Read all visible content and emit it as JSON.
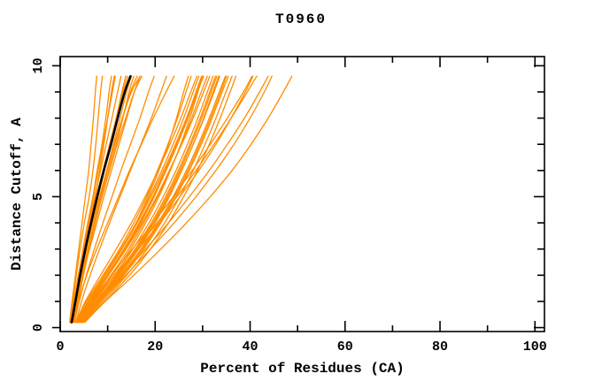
{
  "chart_data": {
    "type": "line",
    "title": "T0960",
    "xlabel": "Percent of Residues (CA)",
    "ylabel": "Distance Cutoff, A",
    "xlim": [
      0,
      102
    ],
    "ylim": [
      -0.15,
      10.35
    ],
    "grid": false,
    "legend": "none",
    "background_color": "#ffffff",
    "axis_color": "#000000",
    "x_ticks": {
      "major": [
        0,
        20,
        40,
        60,
        80,
        100
      ],
      "minor": [
        10,
        30,
        50,
        70,
        90
      ],
      "major_labels": [
        "0",
        "20",
        "40",
        "60",
        "80",
        "100"
      ]
    },
    "y_ticks": {
      "major": [
        0,
        5,
        10
      ],
      "minor": [
        1,
        2,
        3,
        4,
        6,
        7,
        8,
        9
      ],
      "major_labels": [
        "0",
        "5",
        "10"
      ]
    },
    "cutoffs": [
      0.2,
      1,
      2,
      3,
      4,
      5,
      6,
      7,
      8,
      9,
      9.6
    ],
    "reference": {
      "name": "reference-model-curve",
      "color": "#000000",
      "line_width": 2.6,
      "x": [
        2.4,
        3.2,
        4.2,
        5.3,
        6.5,
        7.8,
        9.2,
        10.7,
        12.1,
        13.6,
        14.8
      ]
    },
    "predictions": {
      "name": "prediction-model-curves",
      "color": "#FF8C00",
      "line_width": 1.3,
      "curves": [
        [
          2.1,
          2.7,
          3.4,
          4.2,
          5.1,
          6.1,
          6.9,
          7.5,
          8.0,
          8.5,
          8.9
        ],
        [
          2.5,
          3.0,
          3.9,
          4.8,
          5.8,
          6.9,
          7.8,
          8.8,
          9.6,
          10.3,
          10.8
        ],
        [
          2.8,
          3.5,
          4.4,
          5.5,
          6.8,
          8.0,
          9.3,
          10.6,
          11.8,
          13.0,
          13.8
        ],
        [
          3.0,
          3.8,
          4.9,
          6.1,
          7.4,
          8.8,
          10.3,
          11.8,
          13.2,
          14.5,
          15.5
        ],
        [
          2.4,
          3.2,
          4.2,
          5.3,
          6.4,
          7.4,
          8.3,
          9.2,
          10.0,
          10.8,
          11.4
        ],
        [
          2.6,
          3.4,
          4.5,
          5.8,
          7.2,
          8.6,
          10.0,
          11.5,
          13.1,
          14.8,
          16.2
        ],
        [
          2.3,
          3.0,
          4.0,
          5.0,
          6.0,
          7.0,
          8.0,
          9.0,
          10.0,
          11.0,
          11.6
        ],
        [
          2.9,
          3.7,
          4.7,
          5.9,
          7.2,
          8.5,
          9.8,
          11.2,
          12.6,
          14.0,
          15.0
        ],
        [
          2.5,
          3.3,
          4.3,
          5.5,
          6.9,
          8.3,
          9.8,
          11.4,
          13.1,
          15.0,
          16.8
        ],
        [
          2.2,
          2.9,
          3.8,
          4.9,
          6.1,
          7.3,
          8.5,
          9.7,
          10.9,
          12.1,
          12.8
        ],
        [
          2.7,
          3.6,
          4.8,
          6.2,
          7.7,
          9.2,
          10.8,
          12.4,
          14.0,
          15.6,
          16.8
        ],
        [
          2.4,
          3.1,
          4.0,
          5.1,
          6.3,
          7.6,
          9.0,
          10.4,
          11.8,
          13.2,
          14.2
        ],
        [
          2.6,
          3.5,
          4.6,
          5.9,
          7.3,
          8.8,
          10.4,
          12.0,
          13.8,
          15.6,
          17.2
        ],
        [
          2.0,
          2.5,
          3.2,
          3.9,
          4.6,
          5.3,
          6.0,
          6.5,
          7.0,
          7.4,
          7.7
        ],
        [
          3.0,
          4.0,
          5.5,
          7.2,
          9.0,
          10.9,
          12.8,
          14.8,
          16.8,
          18.6,
          19.8
        ],
        [
          3.3,
          4.5,
          6.3,
          8.3,
          10.4,
          12.6,
          14.8,
          17.0,
          19.2,
          21.2,
          22.4
        ],
        [
          2.8,
          3.9,
          5.6,
          7.7,
          10.0,
          12.3,
          14.6,
          17.1,
          19.6,
          22.3,
          24.0
        ],
        [
          3.5,
          6.0,
          9.5,
          13.0,
          16.0,
          18.5,
          20.8,
          22.8,
          24.5,
          26.0,
          27.0
        ],
        [
          4.0,
          7.0,
          11.0,
          14.8,
          18.0,
          20.8,
          23.2,
          25.4,
          27.3,
          29.0,
          30.0
        ],
        [
          3.2,
          5.5,
          9.0,
          12.5,
          15.5,
          18.2,
          20.5,
          22.7,
          24.7,
          26.5,
          27.6
        ],
        [
          4.5,
          8.0,
          12.5,
          16.5,
          20.0,
          23.0,
          25.6,
          28.0,
          30.2,
          32.2,
          33.4
        ],
        [
          3.8,
          6.5,
          10.2,
          13.8,
          17.0,
          19.8,
          22.3,
          24.6,
          26.7,
          28.6,
          29.8
        ],
        [
          4.2,
          7.5,
          11.8,
          15.8,
          19.2,
          22.2,
          24.9,
          27.3,
          29.5,
          31.5,
          32.7
        ],
        [
          3.4,
          5.8,
          9.3,
          12.8,
          16.0,
          18.8,
          21.4,
          23.8,
          26.0,
          28.0,
          29.2
        ],
        [
          4.8,
          8.6,
          13.4,
          17.6,
          21.2,
          24.4,
          27.2,
          29.7,
          32.0,
          34.1,
          35.4
        ],
        [
          3.6,
          6.2,
          9.8,
          13.4,
          16.6,
          19.5,
          22.1,
          24.5,
          26.7,
          28.7,
          30.0
        ],
        [
          4.4,
          7.8,
          12.2,
          16.2,
          19.7,
          22.8,
          25.5,
          28.0,
          30.3,
          32.4,
          33.6
        ],
        [
          3.3,
          5.3,
          8.5,
          11.8,
          15.0,
          17.9,
          20.6,
          23.1,
          25.4,
          27.5,
          28.8
        ],
        [
          4.6,
          8.2,
          12.8,
          17.0,
          20.6,
          23.8,
          26.6,
          29.1,
          31.4,
          33.5,
          34.8
        ],
        [
          3.7,
          6.4,
          10.0,
          13.6,
          16.8,
          19.7,
          22.3,
          24.7,
          26.9,
          28.9,
          30.2
        ],
        [
          4.1,
          7.2,
          11.4,
          15.3,
          18.7,
          21.7,
          24.4,
          26.8,
          29.0,
          31.0,
          32.2
        ],
        [
          3.9,
          6.8,
          10.7,
          14.4,
          17.6,
          20.5,
          23.1,
          25.5,
          27.7,
          29.7,
          31.0
        ],
        [
          5.0,
          9.0,
          14.0,
          18.3,
          22.0,
          25.2,
          28.0,
          30.5,
          32.8,
          34.9,
          36.2
        ],
        [
          3.5,
          5.9,
          9.4,
          13.0,
          16.2,
          19.1,
          21.8,
          24.3,
          26.6,
          28.7,
          30.0
        ],
        [
          4.3,
          7.6,
          12.0,
          16.0,
          19.5,
          22.5,
          25.2,
          27.6,
          29.8,
          31.8,
          33.0
        ],
        [
          3.6,
          6.3,
          10.1,
          13.9,
          17.3,
          20.3,
          23.0,
          25.6,
          28.0,
          30.2,
          31.5
        ],
        [
          4.7,
          8.4,
          13.1,
          17.3,
          20.9,
          24.1,
          26.9,
          29.4,
          31.7,
          33.8,
          35.0
        ],
        [
          5.2,
          9.4,
          14.6,
          19.0,
          22.8,
          26.0,
          28.9,
          31.4,
          33.7,
          35.8,
          37.0
        ],
        [
          4.0,
          7.5,
          12.0,
          16.5,
          21.0,
          25.2,
          29.2,
          32.8,
          36.0,
          39.0,
          40.6
        ],
        [
          4.5,
          8.5,
          13.8,
          19.0,
          24.0,
          28.6,
          32.8,
          36.6,
          40.0,
          43.0,
          44.6
        ],
        [
          5.0,
          9.5,
          15.5,
          21.2,
          26.6,
          31.6,
          36.2,
          40.2,
          43.8,
          47.0,
          48.8
        ],
        [
          3.8,
          7.0,
          11.5,
          16.0,
          20.4,
          24.6,
          28.6,
          32.4,
          36.0,
          39.4,
          41.4
        ],
        [
          4.2,
          8.0,
          13.0,
          18.0,
          22.8,
          27.2,
          31.4,
          35.2,
          38.8,
          42.0,
          43.8
        ],
        [
          3.5,
          6.5,
          10.8,
          15.2,
          19.6,
          23.8,
          27.8,
          31.6,
          35.2,
          38.6,
          40.4
        ]
      ]
    }
  }
}
